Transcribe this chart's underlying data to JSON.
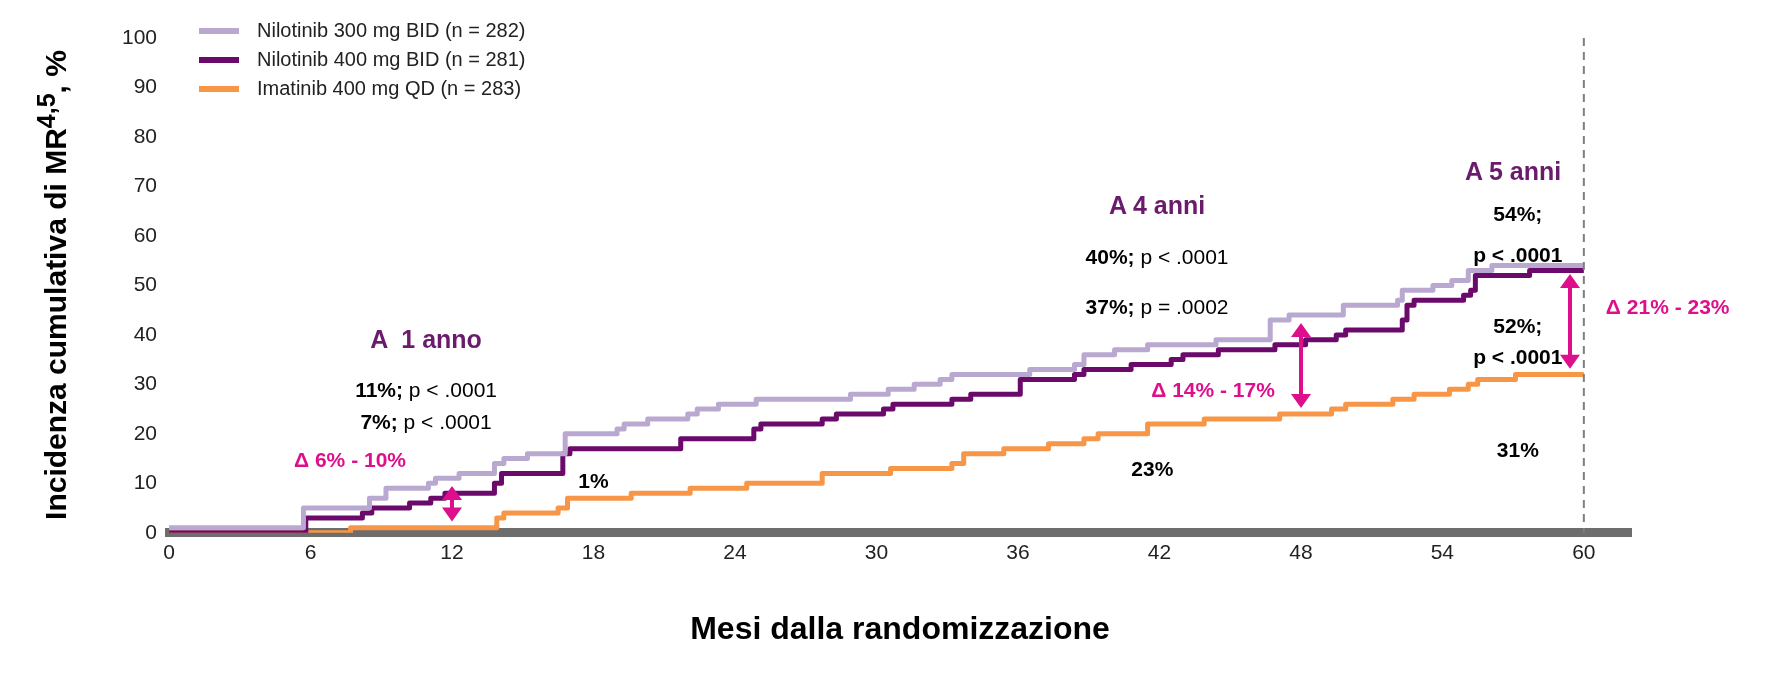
{
  "chart_data": {
    "type": "step",
    "xlabel": "Mesi dalla randomizzazione",
    "ylabel": "Incidenza cumulativa di MR$^{4,5}$, %",
    "xlim": [
      0,
      62
    ],
    "xticks": [
      0,
      6,
      12,
      18,
      24,
      30,
      36,
      42,
      48,
      54,
      60
    ],
    "ylim": [
      0,
      100
    ],
    "yticks": [
      0,
      10,
      20,
      30,
      40,
      50,
      60,
      70,
      80,
      90,
      100
    ],
    "grid": false,
    "legend": "top left",
    "marker": "none",
    "line_style": "solid",
    "series": [
      {
        "name": "Nilotinib 300 mg BID (n = 282)",
        "color": "#b9a9d0",
        "x": [
          0,
          2.9,
          5.7,
          8.5,
          9.2,
          11.0,
          11.3,
          12.3,
          13.8,
          14.2,
          15.2,
          16.8,
          19.0,
          19.3,
          20.3,
          22.0,
          22.4,
          23.3,
          24.9,
          27.7,
          28.9,
          30.5,
          31.6,
          32.7,
          33.2,
          36.5,
          38.4,
          38.8,
          40.1,
          41.5,
          43.9,
          44.4,
          46.7,
          47.5,
          49.3,
          49.8,
          52.1,
          52.3,
          53.6,
          54.4,
          55.1,
          56.1,
          58.1,
          60
        ],
        "values": [
          1,
          1,
          5,
          7,
          9,
          10,
          11,
          12,
          14,
          15,
          16,
          20,
          21,
          22,
          23,
          24,
          25,
          26,
          27,
          27,
          28,
          29,
          30,
          31,
          32,
          33,
          34,
          36,
          37,
          38,
          38,
          39,
          43,
          44,
          44,
          46,
          47,
          49,
          50,
          51,
          53,
          54,
          54,
          54
        ]
      },
      {
        "name": "Nilotinib 400 mg BID (n = 281)",
        "color": "#6b0a6b",
        "x": [
          0,
          5.8,
          8.2,
          8.6,
          10.2,
          11.1,
          11.7,
          13.8,
          14.1,
          16.7,
          17.0,
          19.4,
          21.7,
          22.6,
          24.8,
          25.1,
          27.7,
          28.3,
          30.3,
          30.7,
          33.2,
          34.0,
          36.1,
          38.4,
          38.8,
          40.8,
          42.5,
          43.0,
          44.5,
          46.9,
          48.2,
          49.5,
          49.9,
          52.3,
          52.5,
          52.8,
          54.9,
          55.2,
          55.4,
          56.5,
          57.7,
          60
        ],
        "values": [
          0,
          3,
          4,
          5,
          6,
          7,
          8,
          10,
          12,
          16,
          17,
          17,
          19,
          19,
          21,
          22,
          23,
          24,
          25,
          26,
          27,
          28,
          31,
          32,
          33,
          34,
          35,
          36,
          37,
          38,
          39,
          40,
          41,
          43,
          46,
          47,
          48,
          49,
          52,
          52,
          53,
          53
        ]
      },
      {
        "name": "Imatinib 400 mg QD (n = 283)",
        "color": "#f79646",
        "x": [
          0,
          7.7,
          13.9,
          14.2,
          16.5,
          16.9,
          19.6,
          22.1,
          24.5,
          27.7,
          30.0,
          30.6,
          33.2,
          33.7,
          35.4,
          36.2,
          37.3,
          38.8,
          39.4,
          41.5,
          43.9,
          47.1,
          49.3,
          49.9,
          51.9,
          52.8,
          54.3,
          55.1,
          55.5,
          57.1,
          58.8,
          60
        ],
        "values": [
          0,
          1,
          3,
          4,
          5,
          7,
          8,
          9,
          10,
          12,
          12,
          13,
          14,
          16,
          17,
          17,
          18,
          19,
          20,
          22,
          23,
          24,
          25,
          26,
          27,
          28,
          29,
          30,
          31,
          32,
          32,
          32
        ]
      }
    ],
    "ref_lines": [
      {
        "axis": "x",
        "value": 60,
        "color": "#7f7f7f",
        "line_style": "dashed"
      }
    ],
    "annotations": [
      "A  1 anno",
      "11%; p < .0001",
      "7%; p < .0001",
      "Δ 6% - 10%",
      "1%",
      "A 4 anni",
      "40%; p < .0001",
      "37%; p = .0002",
      "Δ 14% - 17%",
      "23%",
      "A 5 anni",
      "54%;",
      "p < .0001",
      "52%;",
      "p < .0001",
      "Δ 21% - 23%",
      "31%"
    ]
  }
}
